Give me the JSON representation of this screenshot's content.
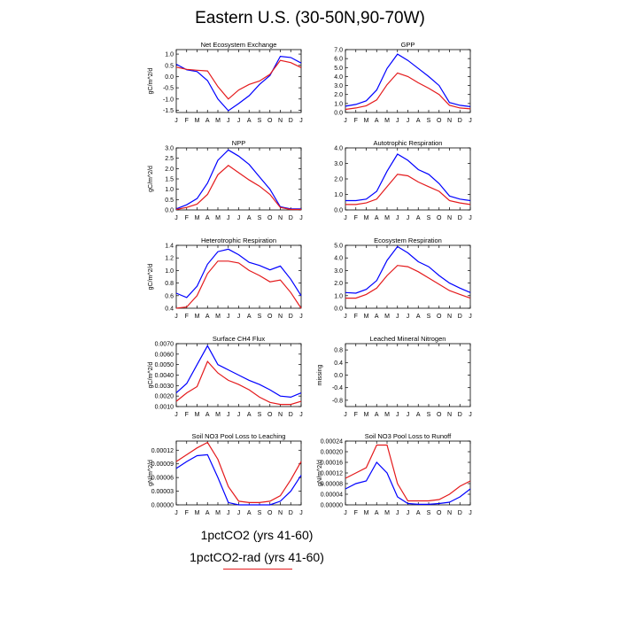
{
  "page": {
    "title": "Eastern U.S. (30-50N,90-70W)"
  },
  "legend": {
    "series": [
      {
        "name": "1pctCO2 (yrs 41-60)",
        "color": "#0000ff"
      },
      {
        "name": "1pctCO2-rad (yrs 41-60)",
        "color": "#e41a1c"
      }
    ]
  },
  "chart_data": [
    {
      "type": "line",
      "title": "Net Ecosystem Exchange",
      "ylabel": "gC/m^2/d",
      "categories": [
        "J",
        "F",
        "M",
        "A",
        "M",
        "J",
        "J",
        "A",
        "S",
        "O",
        "N",
        "D",
        "J"
      ],
      "ylim": [
        -1.6,
        1.2
      ],
      "yticks": [
        "1.0",
        "0.5",
        "0.0",
        "-0.5",
        "-1.0",
        "-1.5"
      ],
      "ytick_values": [
        1.0,
        0.5,
        0.0,
        -0.5,
        -1.0,
        -1.5
      ],
      "series": [
        {
          "name": "1pctCO2 (yrs 41-60)",
          "color": "#0000ff",
          "values": [
            0.55,
            0.3,
            0.22,
            -0.18,
            -1.0,
            -1.52,
            -1.2,
            -0.85,
            -0.35,
            0.05,
            0.9,
            0.85,
            0.6
          ]
        },
        {
          "name": "1pctCO2-rad (yrs 41-60)",
          "color": "#e41a1c",
          "values": [
            0.42,
            0.32,
            0.28,
            0.25,
            -0.45,
            -1.0,
            -0.6,
            -0.35,
            -0.2,
            0.1,
            0.72,
            0.62,
            0.4
          ]
        }
      ]
    },
    {
      "type": "line",
      "title": "GPP",
      "ylabel": "",
      "categories": [
        "J",
        "F",
        "M",
        "A",
        "M",
        "J",
        "J",
        "A",
        "S",
        "O",
        "N",
        "D",
        "J"
      ],
      "ylim": [
        0.0,
        7.0
      ],
      "yticks": [
        "7.0",
        "6.0",
        "5.0",
        "4.0",
        "3.0",
        "2.0",
        "1.0",
        "0.0"
      ],
      "ytick_values": [
        7,
        6,
        5,
        4,
        3,
        2,
        1,
        0
      ],
      "series": [
        {
          "name": "1pctCO2 (yrs 41-60)",
          "color": "#0000ff",
          "values": [
            0.7,
            0.9,
            1.3,
            2.5,
            4.9,
            6.5,
            5.8,
            4.9,
            4.0,
            3.0,
            1.1,
            0.8,
            0.65
          ]
        },
        {
          "name": "1pctCO2-rad (yrs 41-60)",
          "color": "#e41a1c",
          "values": [
            0.35,
            0.5,
            0.75,
            1.4,
            3.1,
            4.4,
            4.0,
            3.3,
            2.7,
            2.0,
            0.8,
            0.5,
            0.4
          ]
        }
      ]
    },
    {
      "type": "line",
      "title": "NPP",
      "ylabel": "gC/m^2/d",
      "categories": [
        "J",
        "F",
        "M",
        "A",
        "M",
        "J",
        "J",
        "A",
        "S",
        "O",
        "N",
        "D",
        "J"
      ],
      "ylim": [
        0.0,
        3.0
      ],
      "yticks": [
        "3.0",
        "2.5",
        "2.0",
        "1.5",
        "1.0",
        "0.5",
        "0.0"
      ],
      "ytick_values": [
        3.0,
        2.5,
        2.0,
        1.5,
        1.0,
        0.5,
        0.0
      ],
      "series": [
        {
          "name": "1pctCO2 (yrs 41-60)",
          "color": "#0000ff",
          "values": [
            0.05,
            0.25,
            0.55,
            1.3,
            2.4,
            2.9,
            2.6,
            2.2,
            1.6,
            1.0,
            0.15,
            0.05,
            0.05
          ]
        },
        {
          "name": "1pctCO2-rad (yrs 41-60)",
          "color": "#e41a1c",
          "values": [
            0.02,
            0.12,
            0.28,
            0.75,
            1.7,
            2.15,
            1.8,
            1.45,
            1.15,
            0.75,
            0.12,
            0.02,
            0.02
          ]
        }
      ]
    },
    {
      "type": "line",
      "title": "Autotrophic Respiration",
      "ylabel": "",
      "categories": [
        "J",
        "F",
        "M",
        "A",
        "M",
        "J",
        "J",
        "A",
        "S",
        "O",
        "N",
        "D",
        "J"
      ],
      "ylim": [
        0.0,
        4.0
      ],
      "yticks": [
        "4.0",
        "3.0",
        "2.0",
        "1.0",
        "0.0"
      ],
      "ytick_values": [
        4,
        3,
        2,
        1,
        0
      ],
      "series": [
        {
          "name": "1pctCO2 (yrs 41-60)",
          "color": "#0000ff",
          "values": [
            0.6,
            0.6,
            0.7,
            1.2,
            2.5,
            3.6,
            3.2,
            2.6,
            2.3,
            1.7,
            0.9,
            0.7,
            0.6
          ]
        },
        {
          "name": "1pctCO2-rad (yrs 41-60)",
          "color": "#e41a1c",
          "values": [
            0.35,
            0.35,
            0.45,
            0.7,
            1.5,
            2.3,
            2.2,
            1.8,
            1.5,
            1.2,
            0.6,
            0.45,
            0.35
          ]
        }
      ]
    },
    {
      "type": "line",
      "title": "Heterotrophic Respiration",
      "ylabel": "gC/m^2/d",
      "categories": [
        "J",
        "F",
        "M",
        "A",
        "M",
        "J",
        "J",
        "A",
        "S",
        "O",
        "N",
        "D",
        "J"
      ],
      "ylim": [
        0.4,
        1.4
      ],
      "yticks": [
        "1.4",
        "1.2",
        "1.0",
        "0.8",
        "0.6",
        "0.4"
      ],
      "ytick_values": [
        1.4,
        1.2,
        1.0,
        0.8,
        0.6,
        0.4
      ],
      "series": [
        {
          "name": "1pctCO2 (yrs 41-60)",
          "color": "#0000ff",
          "values": [
            0.64,
            0.57,
            0.75,
            1.1,
            1.3,
            1.34,
            1.25,
            1.13,
            1.08,
            1.01,
            1.07,
            0.86,
            0.6
          ]
        },
        {
          "name": "1pctCO2-rad (yrs 41-60)",
          "color": "#e41a1c",
          "values": [
            0.4,
            0.42,
            0.6,
            0.95,
            1.15,
            1.15,
            1.12,
            1.0,
            0.92,
            0.82,
            0.85,
            0.65,
            0.4
          ]
        }
      ]
    },
    {
      "type": "line",
      "title": "Ecosystem Respiration",
      "ylabel": "",
      "categories": [
        "J",
        "F",
        "M",
        "A",
        "M",
        "J",
        "J",
        "A",
        "S",
        "O",
        "N",
        "D",
        "J"
      ],
      "ylim": [
        0.0,
        5.0
      ],
      "yticks": [
        "5.0",
        "4.0",
        "3.0",
        "2.0",
        "1.0",
        "0.0"
      ],
      "ytick_values": [
        5,
        4,
        3,
        2,
        1,
        0
      ],
      "series": [
        {
          "name": "1pctCO2 (yrs 41-60)",
          "color": "#0000ff",
          "values": [
            1.25,
            1.2,
            1.5,
            2.2,
            3.8,
            4.9,
            4.4,
            3.7,
            3.3,
            2.6,
            2.0,
            1.6,
            1.25
          ]
        },
        {
          "name": "1pctCO2-rad (yrs 41-60)",
          "color": "#e41a1c",
          "values": [
            0.8,
            0.8,
            1.1,
            1.6,
            2.6,
            3.4,
            3.3,
            2.9,
            2.4,
            1.9,
            1.4,
            1.1,
            0.8
          ]
        }
      ]
    },
    {
      "type": "line",
      "title": "Surface CH4 Flux",
      "ylabel": "gC/m^2/d",
      "categories": [
        "J",
        "F",
        "M",
        "A",
        "M",
        "J",
        "J",
        "A",
        "S",
        "O",
        "N",
        "D",
        "J"
      ],
      "ylim": [
        0.001,
        0.007
      ],
      "yticks": [
        "0.0070",
        "0.0060",
        "0.0050",
        "0.0040",
        "0.0030",
        "0.0020",
        "0.0010"
      ],
      "ytick_values": [
        0.007,
        0.006,
        0.005,
        0.004,
        0.003,
        0.002,
        0.001
      ],
      "series": [
        {
          "name": "1pctCO2 (yrs 41-60)",
          "color": "#0000ff",
          "values": [
            0.0023,
            0.0032,
            0.005,
            0.0068,
            0.005,
            0.0045,
            0.004,
            0.0035,
            0.0031,
            0.0026,
            0.002,
            0.0019,
            0.0023
          ]
        },
        {
          "name": "1pctCO2-rad (yrs 41-60)",
          "color": "#e41a1c",
          "values": [
            0.0015,
            0.0023,
            0.0029,
            0.0053,
            0.0042,
            0.0035,
            0.0031,
            0.0026,
            0.0019,
            0.0014,
            0.0012,
            0.0012,
            0.0015
          ]
        }
      ]
    },
    {
      "type": "line",
      "title": "Leached Mineral Nitrogen",
      "ylabel": "missing",
      "categories": [
        "J",
        "F",
        "M",
        "A",
        "M",
        "J",
        "J",
        "A",
        "S",
        "O",
        "N",
        "D",
        "J"
      ],
      "ylim": [
        -1.0,
        1.0
      ],
      "yticks": [
        "0.8",
        "0.4",
        "0.0",
        "-0.4",
        "-0.8"
      ],
      "ytick_values": [
        0.8,
        0.4,
        0.0,
        -0.4,
        -0.8
      ],
      "series": []
    },
    {
      "type": "line",
      "title": "Soil NO3 Pool Loss to Leaching",
      "ylabel": "gN/m^2/d",
      "categories": [
        "J",
        "F",
        "M",
        "A",
        "M",
        "J",
        "J",
        "A",
        "S",
        "O",
        "N",
        "D",
        "J"
      ],
      "ylim": [
        0.0,
        0.00014
      ],
      "yticks": [
        "0.00012",
        "0.00009",
        "0.00006",
        "0.00003",
        "0.00000"
      ],
      "ytick_values": [
        0.00012,
        9e-05,
        6e-05,
        3e-05,
        0.0
      ],
      "series": [
        {
          "name": "1pctCO2 (yrs 41-60)",
          "color": "#0000ff",
          "values": [
            8e-05,
            9.5e-05,
            0.000108,
            0.00011,
            6e-05,
            5e-06,
            0.0,
            0.0,
            0.0,
            0.0,
            8e-06,
            3e-05,
            6.5e-05
          ]
        },
        {
          "name": "1pctCO2-rad (yrs 41-60)",
          "color": "#e41a1c",
          "values": [
            9.5e-05,
            0.00011,
            0.000125,
            0.000137,
            0.0001,
            4e-05,
            8e-06,
            5e-06,
            5e-06,
            8e-06,
            2e-05,
            5.5e-05,
            9.5e-05
          ]
        }
      ]
    },
    {
      "type": "line",
      "title": "Soil NO3 Pool Loss to Runoff",
      "ylabel": "gN/m^2/d",
      "categories": [
        "J",
        "F",
        "M",
        "A",
        "M",
        "J",
        "J",
        "A",
        "S",
        "O",
        "N",
        "D",
        "J"
      ],
      "ylim": [
        0.0,
        0.00024
      ],
      "yticks": [
        "0.00024",
        "0.00020",
        "0.00016",
        "0.00012",
        "0.00008",
        "0.00004",
        "0.00000"
      ],
      "ytick_values": [
        0.00024,
        0.0002,
        0.00016,
        0.00012,
        8e-05,
        4e-05,
        0.0
      ],
      "series": [
        {
          "name": "1pctCO2 (yrs 41-60)",
          "color": "#0000ff",
          "values": [
            6e-05,
            8e-05,
            9e-05,
            0.00016,
            0.00012,
            3e-05,
            5e-06,
            2e-06,
            2e-06,
            5e-06,
            1e-05,
            3e-05,
            6e-05
          ]
        },
        {
          "name": "1pctCO2-rad (yrs 41-60)",
          "color": "#e41a1c",
          "values": [
            0.0001,
            0.00012,
            0.00014,
            0.000225,
            0.000225,
            8e-05,
            1.5e-05,
            1.5e-05,
            1.5e-05,
            2e-05,
            4e-05,
            7e-05,
            9e-05
          ]
        }
      ]
    }
  ]
}
